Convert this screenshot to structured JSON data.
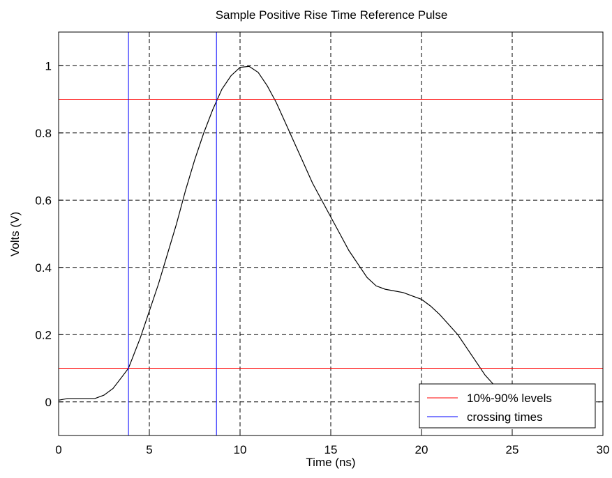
{
  "chart_data": {
    "type": "line",
    "title": "Sample Positive Rise Time Reference Pulse",
    "xlabel": "Time (ns)",
    "ylabel": "Volts (V)",
    "xlim": [
      0,
      30
    ],
    "ylim": [
      -0.1,
      1.1
    ],
    "xticks": [
      0,
      5,
      10,
      15,
      20,
      25,
      30
    ],
    "xtick_labels": [
      "0",
      "5",
      "10",
      "15",
      "20",
      "25",
      "30"
    ],
    "yticks": [
      0,
      0.2,
      0.4,
      0.6,
      0.8,
      1
    ],
    "ytick_labels": [
      "0",
      "0.2",
      "0.4",
      "0.6",
      "0.8",
      "1"
    ],
    "grid": true,
    "legend_position": "bottom-right",
    "colors": {
      "pulse": "#000000",
      "levels": "#ff0000",
      "crossings": "#0000ff"
    },
    "series": [
      {
        "x": [
          0,
          0.5,
          1,
          1.5,
          2,
          2.5,
          3,
          3.5,
          3.85,
          4.5,
          5,
          5.5,
          6,
          6.5,
          7,
          7.5,
          8,
          8.5,
          8.75,
          9,
          9.5,
          10,
          10.5,
          11,
          11.5,
          12,
          12.5,
          13,
          13.5,
          14,
          14.5,
          15,
          15.5,
          16,
          16.5,
          17,
          17.5,
          18,
          18.5,
          19,
          19.5,
          20,
          20.5,
          21,
          21.5,
          22,
          22.5,
          23,
          23.5,
          24,
          24.5
        ],
        "y": [
          0.005,
          0.01,
          0.01,
          0.01,
          0.01,
          0.02,
          0.04,
          0.075,
          0.1,
          0.19,
          0.27,
          0.35,
          0.44,
          0.53,
          0.63,
          0.72,
          0.8,
          0.87,
          0.9,
          0.93,
          0.97,
          0.995,
          0.998,
          0.98,
          0.94,
          0.89,
          0.83,
          0.77,
          0.71,
          0.65,
          0.6,
          0.55,
          0.5,
          0.45,
          0.41,
          0.37,
          0.345,
          0.335,
          0.33,
          0.325,
          0.315,
          0.305,
          0.285,
          0.26,
          0.23,
          0.2,
          0.16,
          0.12,
          0.08,
          0.05,
          0.02
        ]
      },
      {
        "name": "10%-90% levels",
        "type": "hline",
        "y": [
          0.1,
          0.9
        ]
      },
      {
        "name": "crossing times",
        "type": "vline",
        "x": [
          3.85,
          8.7
        ]
      }
    ]
  }
}
